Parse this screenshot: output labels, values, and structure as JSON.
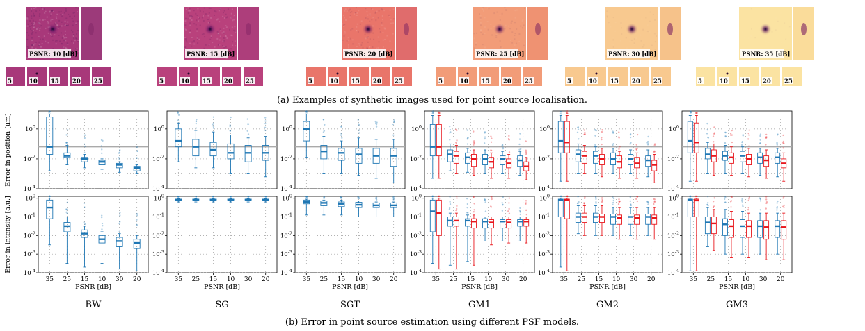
{
  "captions": {
    "top": "(a) Examples of synthetic images used for point source localisation.",
    "bottom": "(b) Error in point source estimation using different PSF models."
  },
  "examples": [
    {
      "psnr_label": "PSNR: 10 [dB]",
      "thumbs": [
        "5",
        "10",
        "15",
        "20",
        "25"
      ],
      "colors": [
        "#a8387a",
        "#9c3a7a"
      ],
      "noise": 0.9
    },
    {
      "psnr_label": "PSNR: 15 [dB]",
      "thumbs": [
        "5",
        "10",
        "15",
        "20",
        "25"
      ],
      "colors": [
        "#b9417c",
        "#ad3e7b"
      ],
      "noise": 0.75
    },
    {
      "psnr_label": "PSNR: 20 [dB]",
      "thumbs": [
        "5",
        "10",
        "15",
        "20",
        "25"
      ],
      "colors": [
        "#e9756a",
        "#e06c6c"
      ],
      "noise": 0.55
    },
    {
      "psnr_label": "PSNR: 25 [dB]",
      "thumbs": [
        "5",
        "10",
        "15",
        "20",
        "25"
      ],
      "colors": [
        "#f29c78",
        "#ef9272"
      ],
      "noise": 0.4
    },
    {
      "psnr_label": "PSNR: 30 [dB]",
      "thumbs": [
        "5",
        "10",
        "15",
        "20",
        "25"
      ],
      "colors": [
        "#f8c98f",
        "#f6c28a"
      ],
      "noise": 0.25
    },
    {
      "psnr_label": "PSNR: 35 [dB]",
      "thumbs": [
        "5",
        "10",
        "15",
        "20",
        "25"
      ],
      "colors": [
        "#fbe3a2",
        "#fadc9a"
      ],
      "noise": 0.15
    }
  ],
  "chart_data": {
    "type": "box",
    "x_categories": [
      "35",
      "25",
      "15",
      "10",
      "30",
      "20"
    ],
    "xlabel": "PSNR [dB]",
    "y_labels": {
      "position": "Error in position [um]",
      "intensity": "Error in intensity [a.u.]"
    },
    "y_ticks": [
      "10^0",
      "10^-2",
      "10^-4"
    ],
    "y_ticks_intensity": [
      "10^0",
      "10^-1",
      "10^-2",
      "10^-3",
      "10^-4"
    ],
    "position_ylim_log10": [
      -4,
      1.2
    ],
    "intensity_ylim_log10": [
      -4,
      0.1
    ],
    "reference_line_log10": -1.2,
    "series_colors": {
      "blue": "#1f77b4",
      "red": "#e8171d"
    },
    "models": [
      {
        "name": "BW",
        "series": [
          "blue"
        ],
        "position": [
          [
            [
              -2.8,
              -1.7,
              -1.2,
              0.8,
              1.0
            ]
          ],
          [
            [
              -2.4,
              -1.9,
              -1.8,
              -1.6,
              -1.1
            ]
          ],
          [
            [
              -2.6,
              -2.2,
              -2.0,
              -1.9,
              -1.7
            ]
          ],
          [
            [
              -2.7,
              -2.4,
              -2.2,
              -2.1,
              -2.0
            ]
          ],
          [
            [
              -2.9,
              -2.6,
              -2.4,
              -2.3,
              -2.2
            ]
          ],
          [
            [
              -3.0,
              -2.8,
              -2.6,
              -2.5,
              -2.4
            ]
          ]
        ],
        "intensity": [
          [
            [
              -2.5,
              -1.1,
              -0.5,
              -0.1,
              0.0
            ]
          ],
          [
            [
              -3.5,
              -1.8,
              -1.5,
              -1.3,
              -1.0
            ]
          ],
          [
            [
              -3.7,
              -2.1,
              -1.9,
              -1.7,
              -1.5
            ]
          ],
          [
            [
              -3.5,
              -2.4,
              -2.2,
              -2.0,
              -1.8
            ]
          ],
          [
            [
              -3.8,
              -2.6,
              -2.3,
              -2.1,
              -1.9
            ]
          ],
          [
            [
              -3.9,
              -2.7,
              -2.4,
              -2.2,
              -2.0
            ]
          ]
        ]
      },
      {
        "name": "SG",
        "series": [
          "blue"
        ],
        "position": [
          [
            [
              -2.2,
              -1.2,
              -0.8,
              0.0,
              0.4
            ]
          ],
          [
            [
              -2.6,
              -1.8,
              -1.2,
              -0.7,
              -0.1
            ]
          ],
          [
            [
              -2.6,
              -1.8,
              -1.4,
              -0.9,
              -0.2
            ]
          ],
          [
            [
              -3.0,
              -2.0,
              -1.6,
              -1.0,
              -0.4
            ]
          ],
          [
            [
              -3.0,
              -2.2,
              -1.6,
              -1.1,
              -0.6
            ]
          ],
          [
            [
              -3.2,
              -2.1,
              -1.6,
              -1.1,
              -0.5
            ]
          ]
        ],
        "intensity": [
          [
            [
              -0.2,
              -0.1,
              -0.08,
              -0.05,
              -0.02
            ]
          ],
          [
            [
              -0.2,
              -0.1,
              -0.08,
              -0.05,
              -0.02
            ]
          ],
          [
            [
              -0.2,
              -0.1,
              -0.08,
              -0.05,
              -0.02
            ]
          ],
          [
            [
              -0.2,
              -0.1,
              -0.08,
              -0.05,
              -0.02
            ]
          ],
          [
            [
              -0.2,
              -0.1,
              -0.08,
              -0.05,
              -0.02
            ]
          ],
          [
            [
              -0.2,
              -0.1,
              -0.08,
              -0.05,
              -0.02
            ]
          ]
        ]
      },
      {
        "name": "SGT",
        "series": [
          "blue"
        ],
        "position": [
          [
            [
              -1.9,
              -0.8,
              0.0,
              0.5,
              1.0
            ]
          ],
          [
            [
              -3.0,
              -2.0,
              -1.5,
              -1.1,
              -0.5
            ]
          ],
          [
            [
              -3.0,
              -2.1,
              -1.6,
              -1.3,
              -0.8
            ]
          ],
          [
            [
              -3.1,
              -2.3,
              -1.7,
              -1.3,
              -0.6
            ]
          ],
          [
            [
              -3.3,
              -2.3,
              -1.8,
              -1.3,
              -0.7
            ]
          ],
          [
            [
              -3.6,
              -2.5,
              -1.8,
              -1.3,
              -0.7
            ]
          ]
        ],
        "intensity": [
          [
            [
              -0.9,
              -0.3,
              -0.2,
              -0.1,
              -0.05
            ]
          ],
          [
            [
              -0.9,
              -0.4,
              -0.25,
              -0.15,
              -0.1
            ]
          ],
          [
            [
              -0.9,
              -0.45,
              -0.3,
              -0.2,
              -0.1
            ]
          ],
          [
            [
              -1.0,
              -0.5,
              -0.35,
              -0.22,
              -0.15
            ]
          ],
          [
            [
              -1.0,
              -0.5,
              -0.38,
              -0.25,
              -0.2
            ]
          ],
          [
            [
              -1.0,
              -0.5,
              -0.38,
              -0.25,
              -0.2
            ]
          ]
        ]
      },
      {
        "name": "GM1",
        "series": [
          "blue",
          "red"
        ],
        "position": [
          [
            [
              -3.3,
              -1.8,
              -1.2,
              0.3,
              0.9
            ],
            [
              -3.3,
              -1.8,
              -1.2,
              0.3,
              0.9
            ]
          ],
          [
            [
              -2.8,
              -2.2,
              -1.7,
              -1.4,
              -1.0
            ],
            [
              -3.0,
              -2.3,
              -1.8,
              -1.5,
              -1.1
            ]
          ],
          [
            [
              -2.9,
              -2.3,
              -1.9,
              -1.6,
              -1.3
            ],
            [
              -3.1,
              -2.5,
              -2.0,
              -1.7,
              -1.4
            ]
          ],
          [
            [
              -3.0,
              -2.4,
              -2.0,
              -1.7,
              -1.4
            ],
            [
              -3.3,
              -2.6,
              -2.2,
              -1.9,
              -1.6
            ]
          ],
          [
            [
              -3.0,
              -2.4,
              -2.0,
              -1.8,
              -1.5
            ],
            [
              -3.3,
              -2.6,
              -2.3,
              -2.0,
              -1.7
            ]
          ],
          [
            [
              -3.1,
              -2.5,
              -2.1,
              -1.8,
              -1.5
            ],
            [
              -3.4,
              -2.8,
              -2.5,
              -2.2,
              -1.9
            ]
          ]
        ],
        "intensity": [
          [
            [
              -3.5,
              -1.8,
              -0.7,
              -0.1,
              0.0
            ],
            [
              -3.8,
              -2.0,
              -0.8,
              -0.1,
              0.0
            ]
          ],
          [
            [
              -3.6,
              -1.5,
              -1.2,
              -1.0,
              -0.8
            ],
            [
              -3.8,
              -1.5,
              -1.2,
              -1.0,
              -0.8
            ]
          ],
          [
            [
              -3.4,
              -1.5,
              -1.2,
              -1.1,
              -0.9
            ],
            [
              -3.6,
              -1.6,
              -1.25,
              -1.1,
              -0.9
            ]
          ],
          [
            [
              -2.3,
              -1.6,
              -1.25,
              -1.1,
              -1.0
            ],
            [
              -2.5,
              -1.6,
              -1.3,
              -1.15,
              -1.0
            ]
          ],
          [
            [
              -2.3,
              -1.6,
              -1.25,
              -1.15,
              -1.0
            ],
            [
              -2.4,
              -1.6,
              -1.3,
              -1.15,
              -1.0
            ]
          ],
          [
            [
              -2.3,
              -1.5,
              -1.25,
              -1.15,
              -1.0
            ],
            [
              -2.4,
              -1.5,
              -1.25,
              -1.15,
              -1.0
            ]
          ]
        ]
      },
      {
        "name": "GM2",
        "series": [
          "blue",
          "red"
        ],
        "position": [
          [
            [
              -3.5,
              -1.6,
              -0.8,
              0.5,
              0.9
            ],
            [
              -3.5,
              -1.6,
              -0.9,
              0.5,
              0.9
            ]
          ],
          [
            [
              -3.0,
              -2.2,
              -1.7,
              -1.4,
              -1.0
            ],
            [
              -3.0,
              -2.3,
              -1.8,
              -1.5,
              -1.1
            ]
          ],
          [
            [
              -3.0,
              -2.3,
              -1.8,
              -1.5,
              -1.2
            ],
            [
              -3.2,
              -2.4,
              -2.0,
              -1.7,
              -1.3
            ]
          ],
          [
            [
              -3.0,
              -2.4,
              -2.0,
              -1.6,
              -1.3
            ],
            [
              -3.3,
              -2.6,
              -2.2,
              -1.8,
              -1.5
            ]
          ],
          [
            [
              -3.0,
              -2.4,
              -2.0,
              -1.7,
              -1.4
            ],
            [
              -3.3,
              -2.6,
              -2.3,
              -1.9,
              -1.6
            ]
          ],
          [
            [
              -3.2,
              -2.5,
              -2.1,
              -1.8,
              -1.4
            ],
            [
              -3.6,
              -2.8,
              -2.4,
              -2.1,
              -1.7
            ]
          ]
        ],
        "intensity": [
          [
            [
              -3.7,
              -1.0,
              -0.1,
              -0.05,
              0.0
            ],
            [
              -3.9,
              -1.1,
              -0.1,
              -0.05,
              0.0
            ]
          ],
          [
            [
              -1.9,
              -1.3,
              -1.0,
              -0.8,
              -0.4
            ],
            [
              -2.0,
              -1.3,
              -1.0,
              -0.8,
              -0.4
            ]
          ],
          [
            [
              -2.0,
              -1.3,
              -1.0,
              -0.8,
              -0.4
            ],
            [
              -2.0,
              -1.3,
              -1.0,
              -0.85,
              -0.4
            ]
          ],
          [
            [
              -2.0,
              -1.4,
              -1.0,
              -0.85,
              -0.5
            ],
            [
              -2.2,
              -1.4,
              -1.05,
              -0.9,
              -0.5
            ]
          ],
          [
            [
              -2.0,
              -1.4,
              -1.0,
              -0.85,
              -0.5
            ],
            [
              -2.2,
              -1.4,
              -1.05,
              -0.9,
              -0.5
            ]
          ],
          [
            [
              -2.0,
              -1.4,
              -1.0,
              -0.85,
              -0.5
            ],
            [
              -2.2,
              -1.4,
              -1.05,
              -0.9,
              -0.5
            ]
          ]
        ]
      },
      {
        "name": "GM3",
        "series": [
          "blue",
          "red"
        ],
        "position": [
          [
            [
              -3.5,
              -1.6,
              -0.8,
              0.5,
              0.9
            ],
            [
              -3.5,
              -1.6,
              -0.9,
              0.4,
              0.9
            ]
          ],
          [
            [
              -3.0,
              -2.0,
              -1.7,
              -1.3,
              -0.9
            ],
            [
              -3.1,
              -2.2,
              -1.8,
              -1.4,
              -1.0
            ]
          ],
          [
            [
              -3.0,
              -2.1,
              -1.8,
              -1.5,
              -1.1
            ],
            [
              -3.1,
              -2.3,
              -1.9,
              -1.6,
              -1.2
            ]
          ],
          [
            [
              -3.0,
              -2.2,
              -1.8,
              -1.5,
              -1.2
            ],
            [
              -3.2,
              -2.4,
              -2.0,
              -1.7,
              -1.3
            ]
          ],
          [
            [
              -3.1,
              -2.3,
              -1.9,
              -1.6,
              -1.3
            ],
            [
              -3.3,
              -2.5,
              -2.1,
              -1.8,
              -1.4
            ]
          ],
          [
            [
              -3.2,
              -2.3,
              -1.9,
              -1.6,
              -1.3
            ],
            [
              -3.5,
              -2.6,
              -2.3,
              -2.0,
              -1.6
            ]
          ]
        ],
        "intensity": [
          [
            [
              -3.9,
              -1.0,
              -0.1,
              -0.05,
              0.0
            ],
            [
              -3.9,
              -1.0,
              -0.12,
              -0.05,
              0.0
            ]
          ],
          [
            [
              -2.6,
              -1.9,
              -1.3,
              -1.0,
              -0.5
            ],
            [
              -2.8,
              -1.9,
              -1.35,
              -1.0,
              -0.6
            ]
          ],
          [
            [
              -3.0,
              -2.0,
              -1.4,
              -1.1,
              -0.6
            ],
            [
              -3.2,
              -2.1,
              -1.5,
              -1.15,
              -0.7
            ]
          ],
          [
            [
              -3.0,
              -2.1,
              -1.5,
              -1.15,
              -0.7
            ],
            [
              -3.2,
              -2.1,
              -1.5,
              -1.2,
              -0.8
            ]
          ],
          [
            [
              -3.0,
              -2.1,
              -1.5,
              -1.2,
              -0.8
            ],
            [
              -3.3,
              -2.2,
              -1.55,
              -1.2,
              -0.8
            ]
          ],
          [
            [
              -3.0,
              -2.1,
              -1.5,
              -1.2,
              -0.8
            ],
            [
              -3.3,
              -2.2,
              -1.55,
              -1.2,
              -0.8
            ]
          ]
        ]
      }
    ]
  }
}
